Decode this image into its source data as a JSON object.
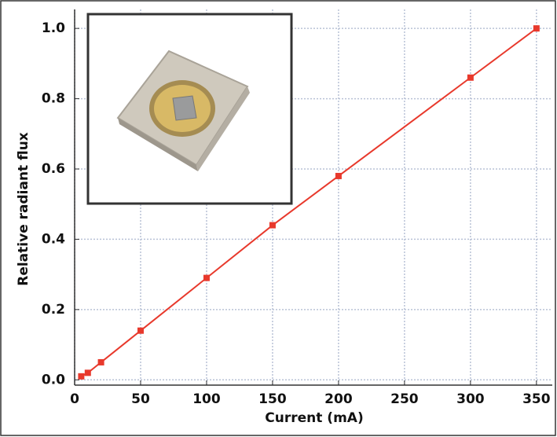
{
  "chart_data": {
    "type": "line",
    "x_label": "Current (mA)",
    "y_label": "Relative radiant flux",
    "x": [
      5,
      10,
      20,
      50,
      100,
      150,
      200,
      300,
      350
    ],
    "values": [
      0.01,
      0.02,
      0.05,
      0.14,
      0.29,
      0.44,
      0.58,
      0.86,
      1.0
    ],
    "color": "#e8392c",
    "xlim": [
      0,
      362
    ],
    "ylim": [
      -0.015,
      1.054
    ],
    "xticks": [
      0,
      50,
      100,
      150,
      200,
      250,
      300,
      350
    ],
    "yticks": [
      {
        "value": 0,
        "label": "0.0"
      },
      {
        "value": 0.2,
        "label": "0.2"
      },
      {
        "value": 0.4,
        "label": "0.4"
      },
      {
        "value": 0.6,
        "label": "0.6"
      },
      {
        "value": 0.8,
        "label": "0.8"
      },
      {
        "value": 1.0,
        "label": "1.0"
      }
    ],
    "grid": true
  }
}
